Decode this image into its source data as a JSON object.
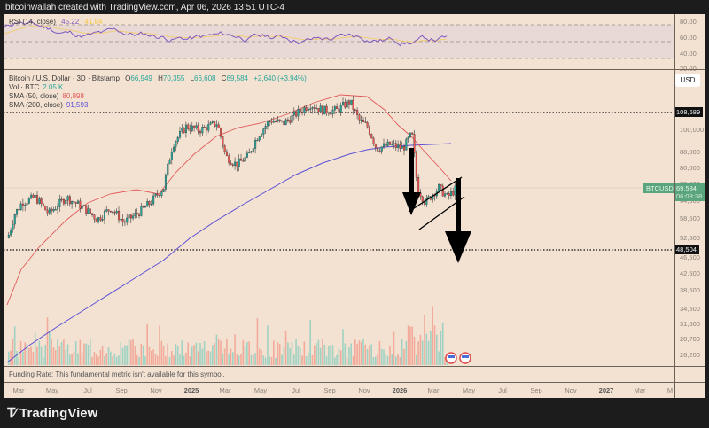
{
  "header": {
    "text": "bitcoinwallah created with TradingView.com, Apr 06, 2026 13:51 UTC-4"
  },
  "rsi": {
    "label": "RSI (14, close)",
    "value": "45.22",
    "ma_value": "41.84",
    "axis": [
      "80.00",
      "60.00",
      "40.00",
      "20.00"
    ],
    "line_color": "#7e57c2",
    "ma_color": "#f5c842"
  },
  "main": {
    "title": "Bitcoin / U.S. Dollar · 3D · Bitstamp",
    "open_label": "O",
    "open": "66,949",
    "high_label": "H",
    "high": "70,355",
    "low_label": "L",
    "low": "66,608",
    "close_label": "C",
    "close": "69,584",
    "change": "+2,640 (+3.94%)",
    "vol_label": "Vol · BTC",
    "vol_value": "2.05 K",
    "sma50_label": "SMA (50, close)",
    "sma50_value": "80,898",
    "sma200_label": "SMA (200, close)",
    "sma200_value": "91,593",
    "currency": "USD",
    "symbol_tag": "BTCUSD",
    "last_price": "69,584",
    "countdown": "06:08:38",
    "resistance_level": "108,689",
    "target_level": "48,504",
    "price_axis": [
      "100,000",
      "88,000",
      "80,000",
      "72,000",
      "64,500",
      "58,500",
      "52,500",
      "46,500",
      "42,500",
      "38,500",
      "34,500",
      "31,500",
      "28,700",
      "26,200"
    ]
  },
  "funding": {
    "text": "Funding Rate: This fundamental metric isn't available for this symbol."
  },
  "time_axis": [
    {
      "label": "Mar",
      "bold": false
    },
    {
      "label": "May",
      "bold": false
    },
    {
      "label": "Jul",
      "bold": false
    },
    {
      "label": "Sep",
      "bold": false
    },
    {
      "label": "Nov",
      "bold": false
    },
    {
      "label": "2025",
      "bold": true
    },
    {
      "label": "Mar",
      "bold": false
    },
    {
      "label": "May",
      "bold": false
    },
    {
      "label": "Jul",
      "bold": false
    },
    {
      "label": "Sep",
      "bold": false
    },
    {
      "label": "Nov",
      "bold": false
    },
    {
      "label": "2026",
      "bold": true
    },
    {
      "label": "Mar",
      "bold": false
    },
    {
      "label": "May",
      "bold": false
    },
    {
      "label": "Jul",
      "bold": false
    },
    {
      "label": "Sep",
      "bold": false
    },
    {
      "label": "Nov",
      "bold": false
    },
    {
      "label": "2027",
      "bold": true
    },
    {
      "label": "Mar",
      "bold": false
    },
    {
      "label": "M",
      "bold": false
    }
  ],
  "brand": {
    "name": "TradingView"
  },
  "colors": {
    "up": "#26a69a",
    "down": "#ef5350",
    "sma50": "#e05a5a",
    "sma200": "#5b4fd6",
    "background": "#f3e2d2"
  },
  "chart_data": {
    "type": "candlestick",
    "title": "Bitcoin / U.S. Dollar · 3D · Bitstamp",
    "x_range": [
      "2024-03",
      "2027-05"
    ],
    "ylim": [
      24000,
      125000
    ],
    "scale": "log",
    "series": [
      {
        "name": "BTCUSD close (approx)",
        "x": [
          "2024-03",
          "2024-05",
          "2024-07",
          "2024-09",
          "2024-11",
          "2025-01",
          "2025-03",
          "2025-05",
          "2025-07",
          "2025-09",
          "2025-10",
          "2025-11",
          "2026-01",
          "2026-02",
          "2026-03",
          "2026-04"
        ],
        "values": [
          62000,
          64000,
          60000,
          58000,
          90000,
          100000,
          84000,
          96000,
          115000,
          112000,
          120000,
          92000,
          90000,
          66000,
          70000,
          69584
        ]
      },
      {
        "name": "SMA 50",
        "last": 80898
      },
      {
        "name": "SMA 200",
        "last": 91593
      }
    ],
    "levels": [
      {
        "name": "resistance",
        "value": 108689
      },
      {
        "name": "target",
        "value": 48504
      }
    ],
    "annotations": [
      "bear flag channel",
      "down arrows projecting to 48,504"
    ],
    "rsi": {
      "name": "RSI (14, close)",
      "last": 45.22,
      "ma": 41.84,
      "ylim": [
        20,
        80
      ]
    }
  }
}
